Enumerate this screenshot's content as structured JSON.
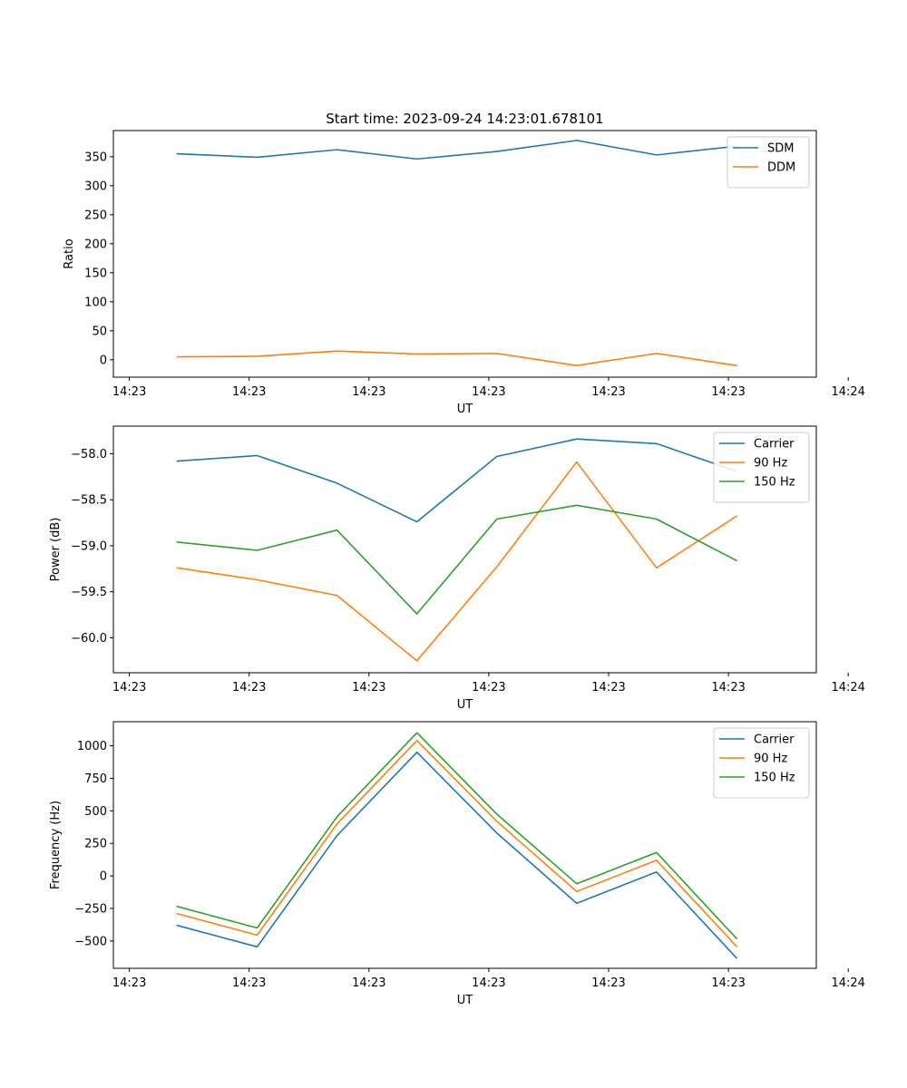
{
  "figure_title": "Start time: 2023-09-24 14:23:01.678101",
  "colors": {
    "blue": "#1f77b4",
    "orange": "#ff7f0e",
    "green": "#2ca02c",
    "axis": "#000000",
    "legend_border": "#cccccc"
  },
  "chart_data": [
    {
      "type": "line",
      "title": "Start time: 2023-09-24 14:23:01.678101",
      "xlabel": "UT",
      "ylabel": "Ratio",
      "x": [
        1,
        2,
        3,
        4,
        5,
        6,
        7,
        8
      ],
      "xlim": [
        0.2,
        9.0
      ],
      "xticks": [
        0.4,
        1.9,
        3.4,
        4.9,
        6.4,
        7.9,
        9.4
      ],
      "xtick_labels": [
        "14:23",
        "14:23",
        "14:23",
        "14:23",
        "14:23",
        "14:23",
        "14:24"
      ],
      "ylim": [
        -30,
        395
      ],
      "yticks": [
        0,
        50,
        100,
        150,
        200,
        250,
        300,
        350
      ],
      "ytick_labels": [
        "0",
        "50",
        "100",
        "150",
        "200",
        "250",
        "300",
        "350"
      ],
      "legend_position": "top-right",
      "series": [
        {
          "name": "SDM",
          "color": "#1f77b4",
          "values": [
            355,
            349,
            362,
            346,
            359,
            378,
            353,
            368
          ]
        },
        {
          "name": "DDM",
          "color": "#ff7f0e",
          "values": [
            5,
            6,
            15,
            10,
            11,
            -10,
            11,
            -10
          ]
        }
      ]
    },
    {
      "type": "line",
      "xlabel": "UT",
      "ylabel": "Power (dB)",
      "x": [
        1,
        2,
        3,
        4,
        5,
        6,
        7,
        8
      ],
      "xlim": [
        0.2,
        9.0
      ],
      "xticks": [
        0.4,
        1.9,
        3.4,
        4.9,
        6.4,
        7.9,
        9.4
      ],
      "xtick_labels": [
        "14:23",
        "14:23",
        "14:23",
        "14:23",
        "14:23",
        "14:23",
        "14:24"
      ],
      "ylim": [
        -60.38,
        -57.7
      ],
      "yticks": [
        -60.0,
        -59.5,
        -59.0,
        -58.5,
        -58.0
      ],
      "ytick_labels": [
        "−60.0",
        "−59.5",
        "−59.0",
        "−58.5",
        "−58.0"
      ],
      "legend_position": "top-right",
      "series": [
        {
          "name": "Carrier",
          "color": "#1f77b4",
          "values": [
            -58.08,
            -58.02,
            -58.32,
            -58.74,
            -58.03,
            -57.84,
            -57.89,
            -58.19
          ]
        },
        {
          "name": "90 Hz",
          "color": "#ff7f0e",
          "values": [
            -59.24,
            -59.37,
            -59.54,
            -60.25,
            -59.23,
            -58.09,
            -59.24,
            -58.68
          ]
        },
        {
          "name": "150 Hz",
          "color": "#2ca02c",
          "values": [
            -58.96,
            -59.05,
            -58.83,
            -59.74,
            -58.71,
            -58.56,
            -58.71,
            -59.16
          ]
        }
      ]
    },
    {
      "type": "line",
      "xlabel": "UT",
      "ylabel": "Frequency (Hz)",
      "x": [
        1,
        2,
        3,
        4,
        5,
        6,
        7,
        8
      ],
      "xlim": [
        0.2,
        9.0
      ],
      "xticks": [
        0.4,
        1.9,
        3.4,
        4.9,
        6.4,
        7.9,
        9.4
      ],
      "xtick_labels": [
        "14:23",
        "14:23",
        "14:23",
        "14:23",
        "14:23",
        "14:23",
        "14:24"
      ],
      "ylim": [
        -710,
        1185
      ],
      "yticks": [
        -500,
        -250,
        0,
        250,
        500,
        750,
        1000
      ],
      "ytick_labels": [
        "−500",
        "−250",
        "0",
        "250",
        "500",
        "750",
        "1000"
      ],
      "legend_position": "top-right",
      "series": [
        {
          "name": "Carrier",
          "color": "#1f77b4",
          "values": [
            -380,
            -545,
            310,
            950,
            330,
            -210,
            30,
            -630
          ]
        },
        {
          "name": "90 Hz",
          "color": "#ff7f0e",
          "values": [
            -290,
            -455,
            400,
            1040,
            420,
            -120,
            120,
            -540
          ]
        },
        {
          "name": "150 Hz",
          "color": "#2ca02c",
          "values": [
            -235,
            -400,
            455,
            1100,
            475,
            -60,
            180,
            -480
          ]
        }
      ]
    }
  ]
}
